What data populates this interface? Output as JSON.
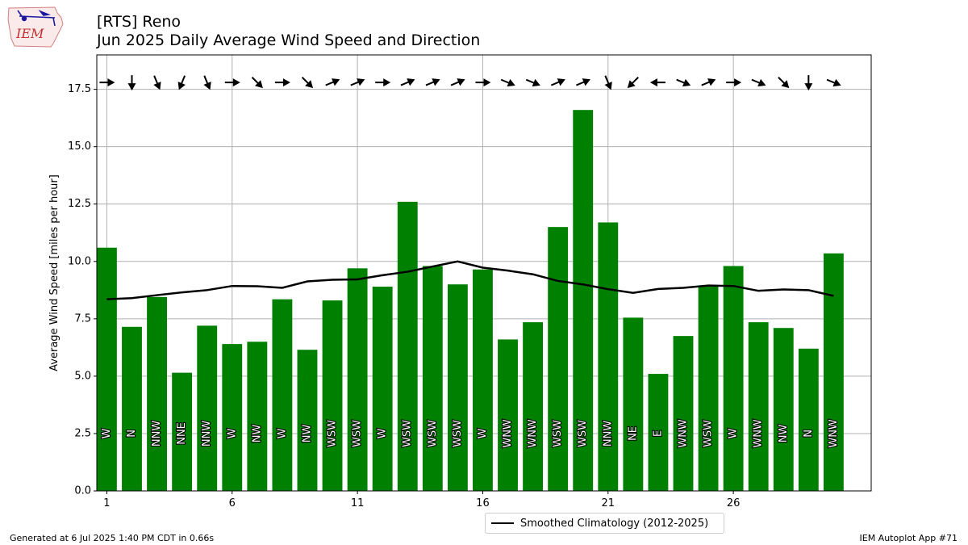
{
  "header": {
    "title_line1": "[RTS] Reno",
    "title_line2": "Jun 2025 Daily Average Wind Speed and Direction"
  },
  "logo": {
    "text": "IEM",
    "icon": "iem-iowa-logo-icon"
  },
  "footer": {
    "generated": "Generated at 6 Jul 2025 1:40 PM CDT in 0.66s",
    "app": "IEM Autoplot App #71"
  },
  "legend": {
    "label": "Smoothed Climatology (2012-2025)"
  },
  "colors": {
    "bar": "#008000",
    "line": "#000000",
    "grid": "#b0b0b0"
  },
  "chart_data": {
    "type": "bar",
    "ylabel": "Average Wind Speed [miles per hour]",
    "xlabel": "",
    "ylim": [
      0,
      19
    ],
    "xlim": [
      0.6,
      31.5
    ],
    "yticks": [
      0.0,
      2.5,
      5.0,
      7.5,
      10.0,
      12.5,
      15.0,
      17.5
    ],
    "ytick_labels": [
      "0.0",
      "2.5",
      "5.0",
      "7.5",
      "10.0",
      "12.5",
      "15.0",
      "17.5"
    ],
    "xticks": [
      1,
      6,
      11,
      16,
      21,
      26
    ],
    "xtick_labels": [
      "1",
      "6",
      "11",
      "16",
      "21",
      "26"
    ],
    "grid": true,
    "legend_position": "below-center",
    "days": [
      1,
      2,
      3,
      4,
      5,
      6,
      7,
      8,
      9,
      10,
      11,
      12,
      13,
      14,
      15,
      16,
      17,
      18,
      19,
      20,
      21,
      22,
      23,
      24,
      25,
      26,
      27,
      28,
      29,
      30
    ],
    "series": [
      {
        "name": "Daily Average Wind Speed",
        "type": "bar",
        "values": [
          10.6,
          7.15,
          8.45,
          5.15,
          7.2,
          6.4,
          6.5,
          8.35,
          6.15,
          8.3,
          9.7,
          8.9,
          12.6,
          9.8,
          9.0,
          9.65,
          6.6,
          7.35,
          11.5,
          16.6,
          11.7,
          7.55,
          5.1,
          6.75,
          8.95,
          9.8,
          7.35,
          7.1,
          6.2,
          10.35
        ]
      },
      {
        "name": "Smoothed Climatology (2012-2025)",
        "type": "line",
        "values": [
          8.35,
          8.4,
          8.53,
          8.65,
          8.75,
          8.93,
          8.92,
          8.85,
          9.13,
          9.2,
          9.22,
          9.4,
          9.55,
          9.78,
          10.0,
          9.73,
          9.6,
          9.44,
          9.15,
          9.0,
          8.79,
          8.63,
          8.8,
          8.85,
          8.95,
          8.93,
          8.72,
          8.78,
          8.75,
          8.5
        ]
      }
    ],
    "direction_labels": [
      "W",
      "N",
      "NNW",
      "NNE",
      "NNW",
      "W",
      "NW",
      "W",
      "NW",
      "WSW",
      "WSW",
      "W",
      "WSW",
      "WSW",
      "WSW",
      "W",
      "WNW",
      "WNW",
      "WSW",
      "WSW",
      "NNW",
      "NE",
      "E",
      "WNW",
      "WSW",
      "W",
      "WNW",
      "NW",
      "N",
      "WNW"
    ],
    "direction_degrees": [
      270,
      0,
      337.5,
      22.5,
      337.5,
      270,
      315,
      270,
      315,
      247.5,
      247.5,
      270,
      247.5,
      247.5,
      247.5,
      270,
      292.5,
      292.5,
      247.5,
      247.5,
      337.5,
      45,
      90,
      292.5,
      247.5,
      270,
      292.5,
      315,
      0,
      292.5
    ]
  }
}
